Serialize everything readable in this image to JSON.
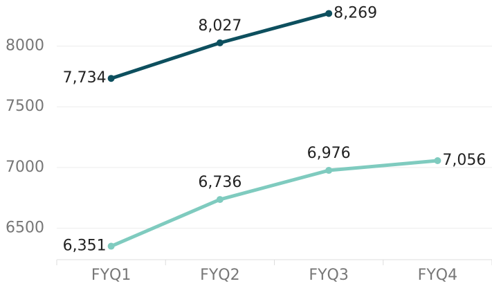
{
  "chart_data": {
    "type": "line",
    "categories": [
      "FYQ1",
      "FYQ2",
      "FYQ3",
      "FYQ4"
    ],
    "series": [
      {
        "color": "#0d4f5e",
        "values": [
          7734,
          8027,
          8269,
          null
        ],
        "value_labels": [
          "7,734",
          "8,027",
          "8,269",
          null
        ]
      },
      {
        "color": "#7fcbbf",
        "values": [
          6351,
          6736,
          6976,
          7056
        ],
        "value_labels": [
          "6,351",
          "6,736",
          "6,976",
          "7,056"
        ]
      }
    ],
    "ylim": [
      6240,
      8380
    ],
    "yticks": [
      6500,
      7000,
      7500,
      8000
    ],
    "grid": true
  }
}
